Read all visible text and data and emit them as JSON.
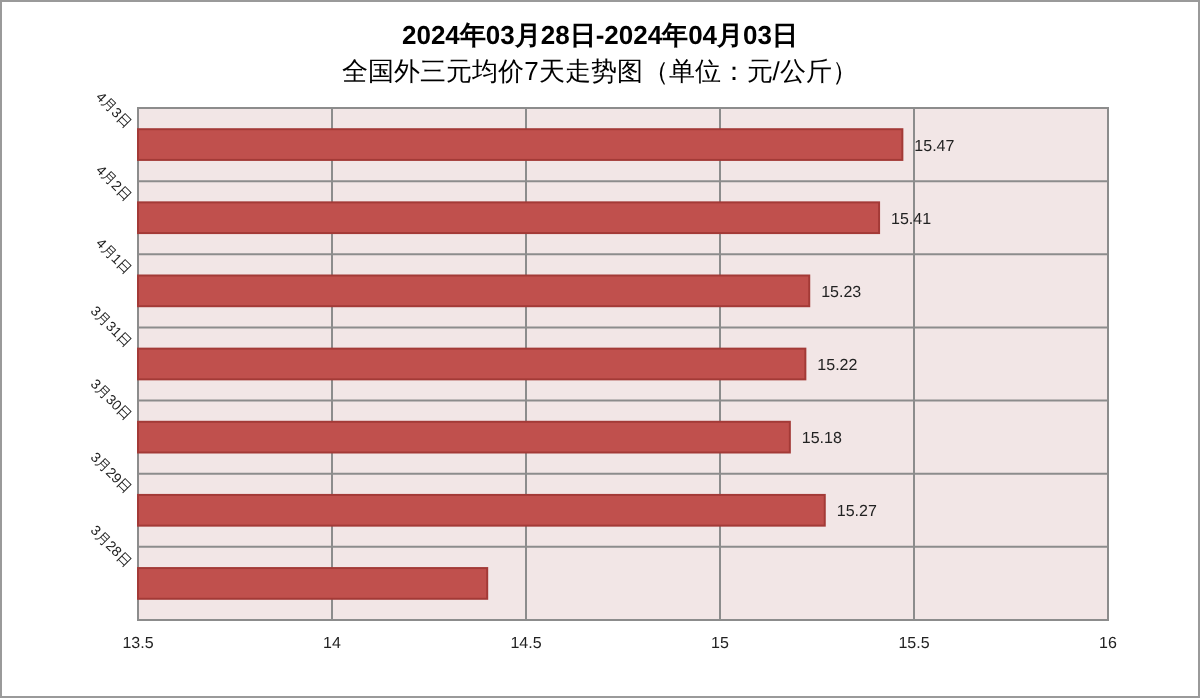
{
  "chart_data": {
    "type": "bar",
    "orientation": "horizontal",
    "title": "2024年03月28日-2024年04月03日",
    "subtitle": "全国外三元均价7天走势图（单位：元/公斤）",
    "categories": [
      "4月3日",
      "4月2日",
      "4月1日",
      "3月31日",
      "3月30日",
      "3月29日",
      "3月28日"
    ],
    "values": [
      15.47,
      15.41,
      15.23,
      15.22,
      15.18,
      15.27,
      14.4
    ],
    "value_labels": [
      "15.47",
      "15.41",
      "15.23",
      "15.22",
      "15.18",
      "15.27",
      null
    ],
    "color": "#c0504d",
    "xlim": [
      13.5,
      16
    ],
    "xticks": [
      13.5,
      14,
      14.5,
      15,
      15.5,
      16
    ],
    "grid": true
  }
}
